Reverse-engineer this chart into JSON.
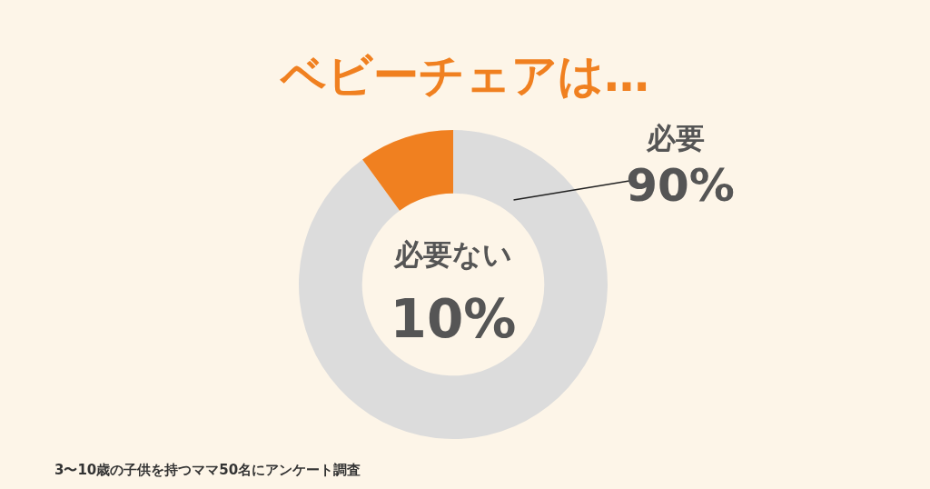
{
  "chart_data": {
    "type": "donut",
    "title": "ベビーチェアは…",
    "categories": [
      "必要",
      "必要ない"
    ],
    "values": [
      90,
      10
    ],
    "colors": [
      "#dcdcdc",
      "#f08020"
    ],
    "value_labels": [
      "90%",
      "10%"
    ],
    "legend": false,
    "annotations": [
      "3〜10歳の子供を持つママ50名にアンケート調査"
    ]
  }
}
